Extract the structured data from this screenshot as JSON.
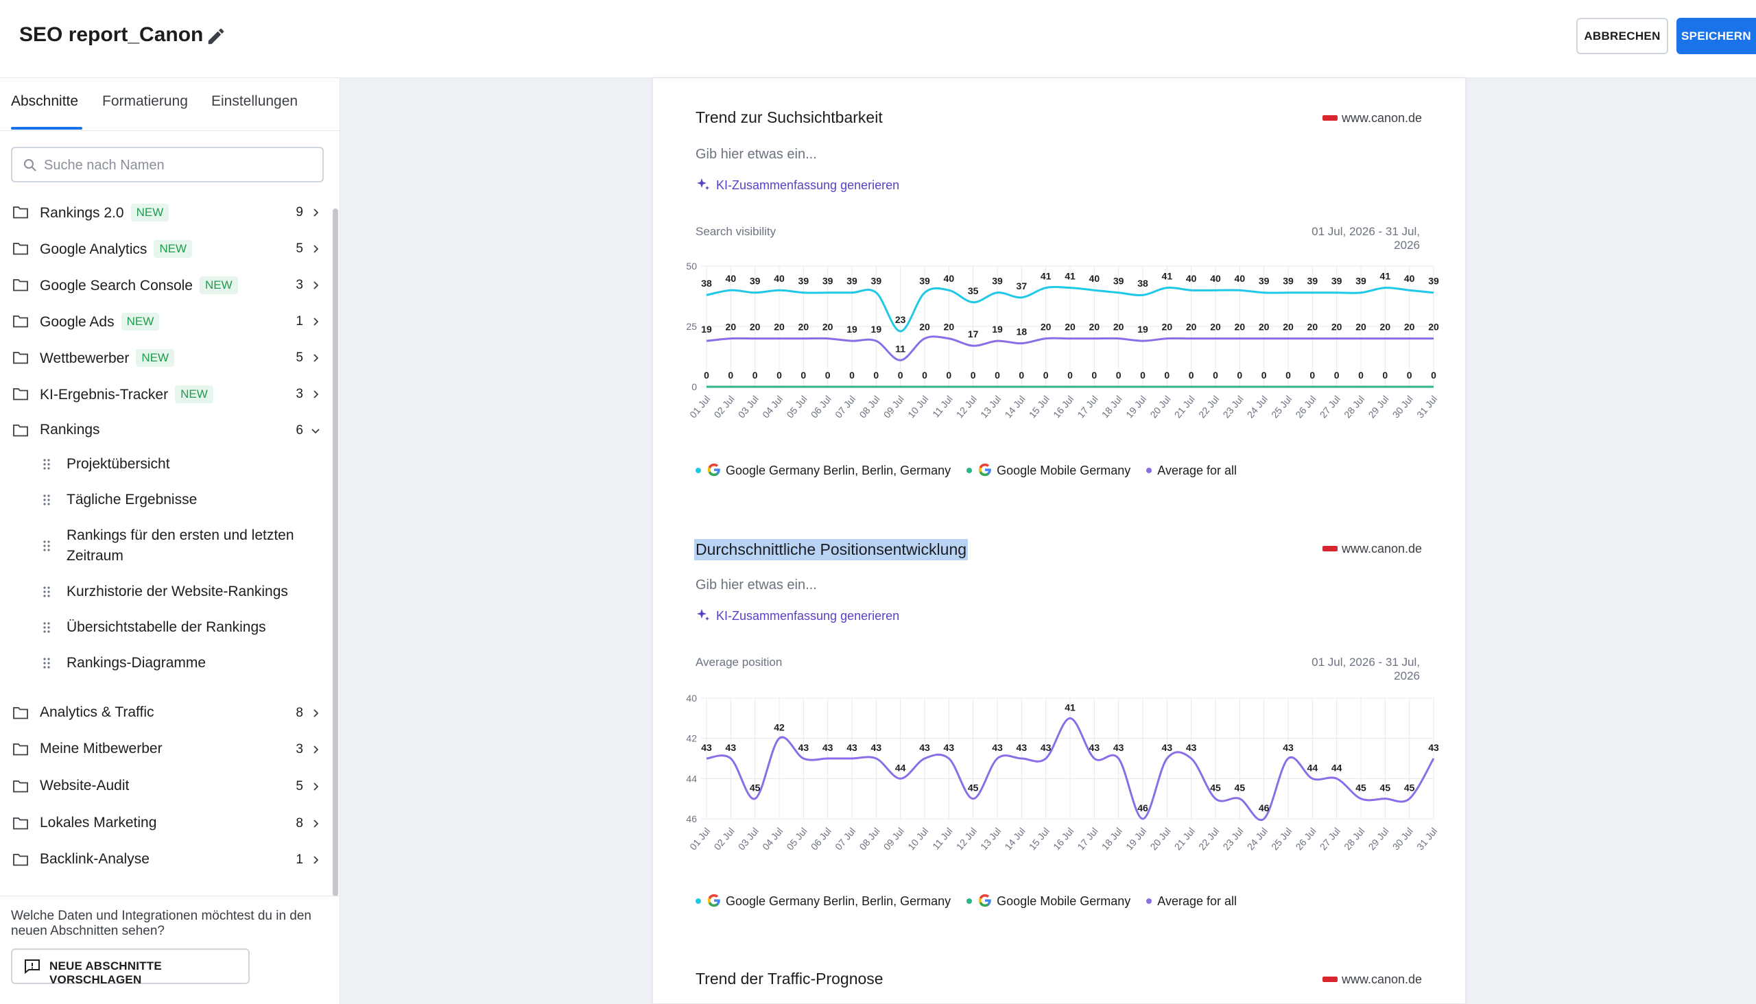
{
  "header": {
    "title": "SEO report_Canon",
    "cancel_label": "ABBRECHEN",
    "save_label": "SPEICHERN"
  },
  "sidebar": {
    "tabs": [
      "Abschnitte",
      "Formatierung",
      "Einstellungen"
    ],
    "search_placeholder": "Suche nach Namen",
    "items": [
      {
        "label": "Rankings 2.0",
        "badge": "NEW",
        "count": "9"
      },
      {
        "label": "Google Analytics",
        "badge": "NEW",
        "count": "5"
      },
      {
        "label": "Google Search Console",
        "badge": "NEW",
        "count": "3"
      },
      {
        "label": "Google Ads",
        "badge": "NEW",
        "count": "1"
      },
      {
        "label": "Wettbewerber",
        "badge": "NEW",
        "count": "5"
      },
      {
        "label": "KI-Ergebnis-Tracker",
        "badge": "NEW",
        "count": "3"
      },
      {
        "label": "Rankings",
        "badge": "",
        "count": "6"
      },
      {
        "label": "Analytics & Traffic",
        "badge": "",
        "count": "8"
      },
      {
        "label": "Meine Mitbewerber",
        "badge": "",
        "count": "3"
      },
      {
        "label": "Website-Audit",
        "badge": "",
        "count": "5"
      },
      {
        "label": "Lokales Marketing",
        "badge": "",
        "count": "8"
      },
      {
        "label": "Backlink-Analyse",
        "badge": "",
        "count": "1"
      }
    ],
    "subitems": [
      "Projektübersicht",
      "Tägliche Ergebnisse",
      "Rankings für den ersten und letzten Zeitraum",
      "Kurzhistorie der Website-Rankings",
      "Übersichtstabelle der Rankings",
      "Rankings-Diagramme"
    ],
    "bottom_question": "Welche Daten und Integrationen möchtest du in den neuen Abschnitten sehen?",
    "suggest_label": "NEUE ABSCHNITTE VORSCHLAGEN"
  },
  "sections": [
    {
      "title": "Trend zur Suchsichtbarkeit",
      "domain": "www.canon.de",
      "placeholder": "Gib hier etwas ein...",
      "ai_label": "KI-Zusammenfassung generieren",
      "chart_label": "Search visibility",
      "date_range": "01 Jul, 2026 - 31 Jul, 2026"
    },
    {
      "title": "Durchschnittliche Positionsentwicklung",
      "domain": "www.canon.de",
      "placeholder": "Gib hier etwas ein...",
      "ai_label": "KI-Zusammenfassung generieren",
      "chart_label": "Average position",
      "date_range": "01 Jul, 2026 - 31 Jul, 2026"
    },
    {
      "title": "Trend der Traffic-Prognose",
      "domain": "www.canon.de"
    }
  ],
  "legend": [
    "Google Germany Berlin, Berlin, Germany",
    "Google Mobile Germany",
    "Average for all"
  ],
  "colors": {
    "accent": "#1a73e8",
    "series_berlin": "#1ec8e6",
    "series_mobile": "#2fb38a",
    "series_average": "#8a6ee8",
    "ai_link": "#5b3fc4",
    "badge_bg": "#e6f6ec",
    "badge_text": "#1e9b4c"
  },
  "chart_data": [
    {
      "type": "line",
      "title": "Search visibility",
      "x": [
        "01 Jul",
        "02 Jul",
        "03 Jul",
        "04 Jul",
        "05 Jul",
        "06 Jul",
        "07 Jul",
        "08 Jul",
        "09 Jul",
        "10 Jul",
        "11 Jul",
        "12 Jul",
        "13 Jul",
        "14 Jul",
        "15 Jul",
        "16 Jul",
        "17 Jul",
        "18 Jul",
        "19 Jul",
        "20 Jul",
        "21 Jul",
        "22 Jul",
        "23 Jul",
        "24 Jul",
        "25 Jul",
        "26 Jul",
        "27 Jul",
        "28 Jul",
        "29 Jul",
        "30 Jul",
        "31 Jul"
      ],
      "yticks": [
        0,
        25,
        50
      ],
      "ylim": [
        0,
        50
      ],
      "series": [
        {
          "name": "Google Germany Berlin, Berlin, Germany",
          "values": [
            38,
            40,
            39,
            40,
            39,
            39,
            39,
            39,
            23,
            39,
            40,
            35,
            39,
            37,
            41,
            41,
            40,
            39,
            38,
            41,
            40,
            40,
            40,
            39,
            39,
            39,
            39,
            39,
            41,
            40,
            39
          ]
        },
        {
          "name": "Google Mobile Germany",
          "values": [
            0,
            0,
            0,
            0,
            0,
            0,
            0,
            0,
            0,
            0,
            0,
            0,
            0,
            0,
            0,
            0,
            0,
            0,
            0,
            0,
            0,
            0,
            0,
            0,
            0,
            0,
            0,
            0,
            0,
            0,
            0
          ]
        },
        {
          "name": "Average for all",
          "values": [
            19,
            20,
            20,
            20,
            20,
            20,
            19,
            19,
            11,
            20,
            20,
            17,
            19,
            18,
            20,
            20,
            20,
            20,
            19,
            20,
            20,
            20,
            20,
            20,
            20,
            20,
            20,
            20,
            20,
            20,
            20
          ]
        }
      ]
    },
    {
      "type": "line",
      "title": "Average position",
      "x": [
        "01 Jul",
        "02 Jul",
        "03 Jul",
        "04 Jul",
        "05 Jul",
        "06 Jul",
        "07 Jul",
        "08 Jul",
        "09 Jul",
        "10 Jul",
        "11 Jul",
        "12 Jul",
        "13 Jul",
        "14 Jul",
        "15 Jul",
        "16 Jul",
        "17 Jul",
        "18 Jul",
        "19 Jul",
        "20 Jul",
        "21 Jul",
        "22 Jul",
        "23 Jul",
        "24 Jul",
        "25 Jul",
        "26 Jul",
        "27 Jul",
        "28 Jul",
        "29 Jul",
        "30 Jul",
        "31 Jul"
      ],
      "yticks": [
        40,
        42,
        44,
        46
      ],
      "ylim": [
        40,
        46
      ],
      "y_inverted": true,
      "series": [
        {
          "name": "Average for all",
          "values": [
            43,
            43,
            45,
            42,
            43,
            43,
            43,
            43,
            44,
            43,
            43,
            45,
            43,
            43,
            43,
            41,
            43,
            43,
            46,
            43,
            43,
            45,
            45,
            46,
            43,
            44,
            44,
            45,
            45,
            45,
            43
          ]
        }
      ]
    }
  ]
}
